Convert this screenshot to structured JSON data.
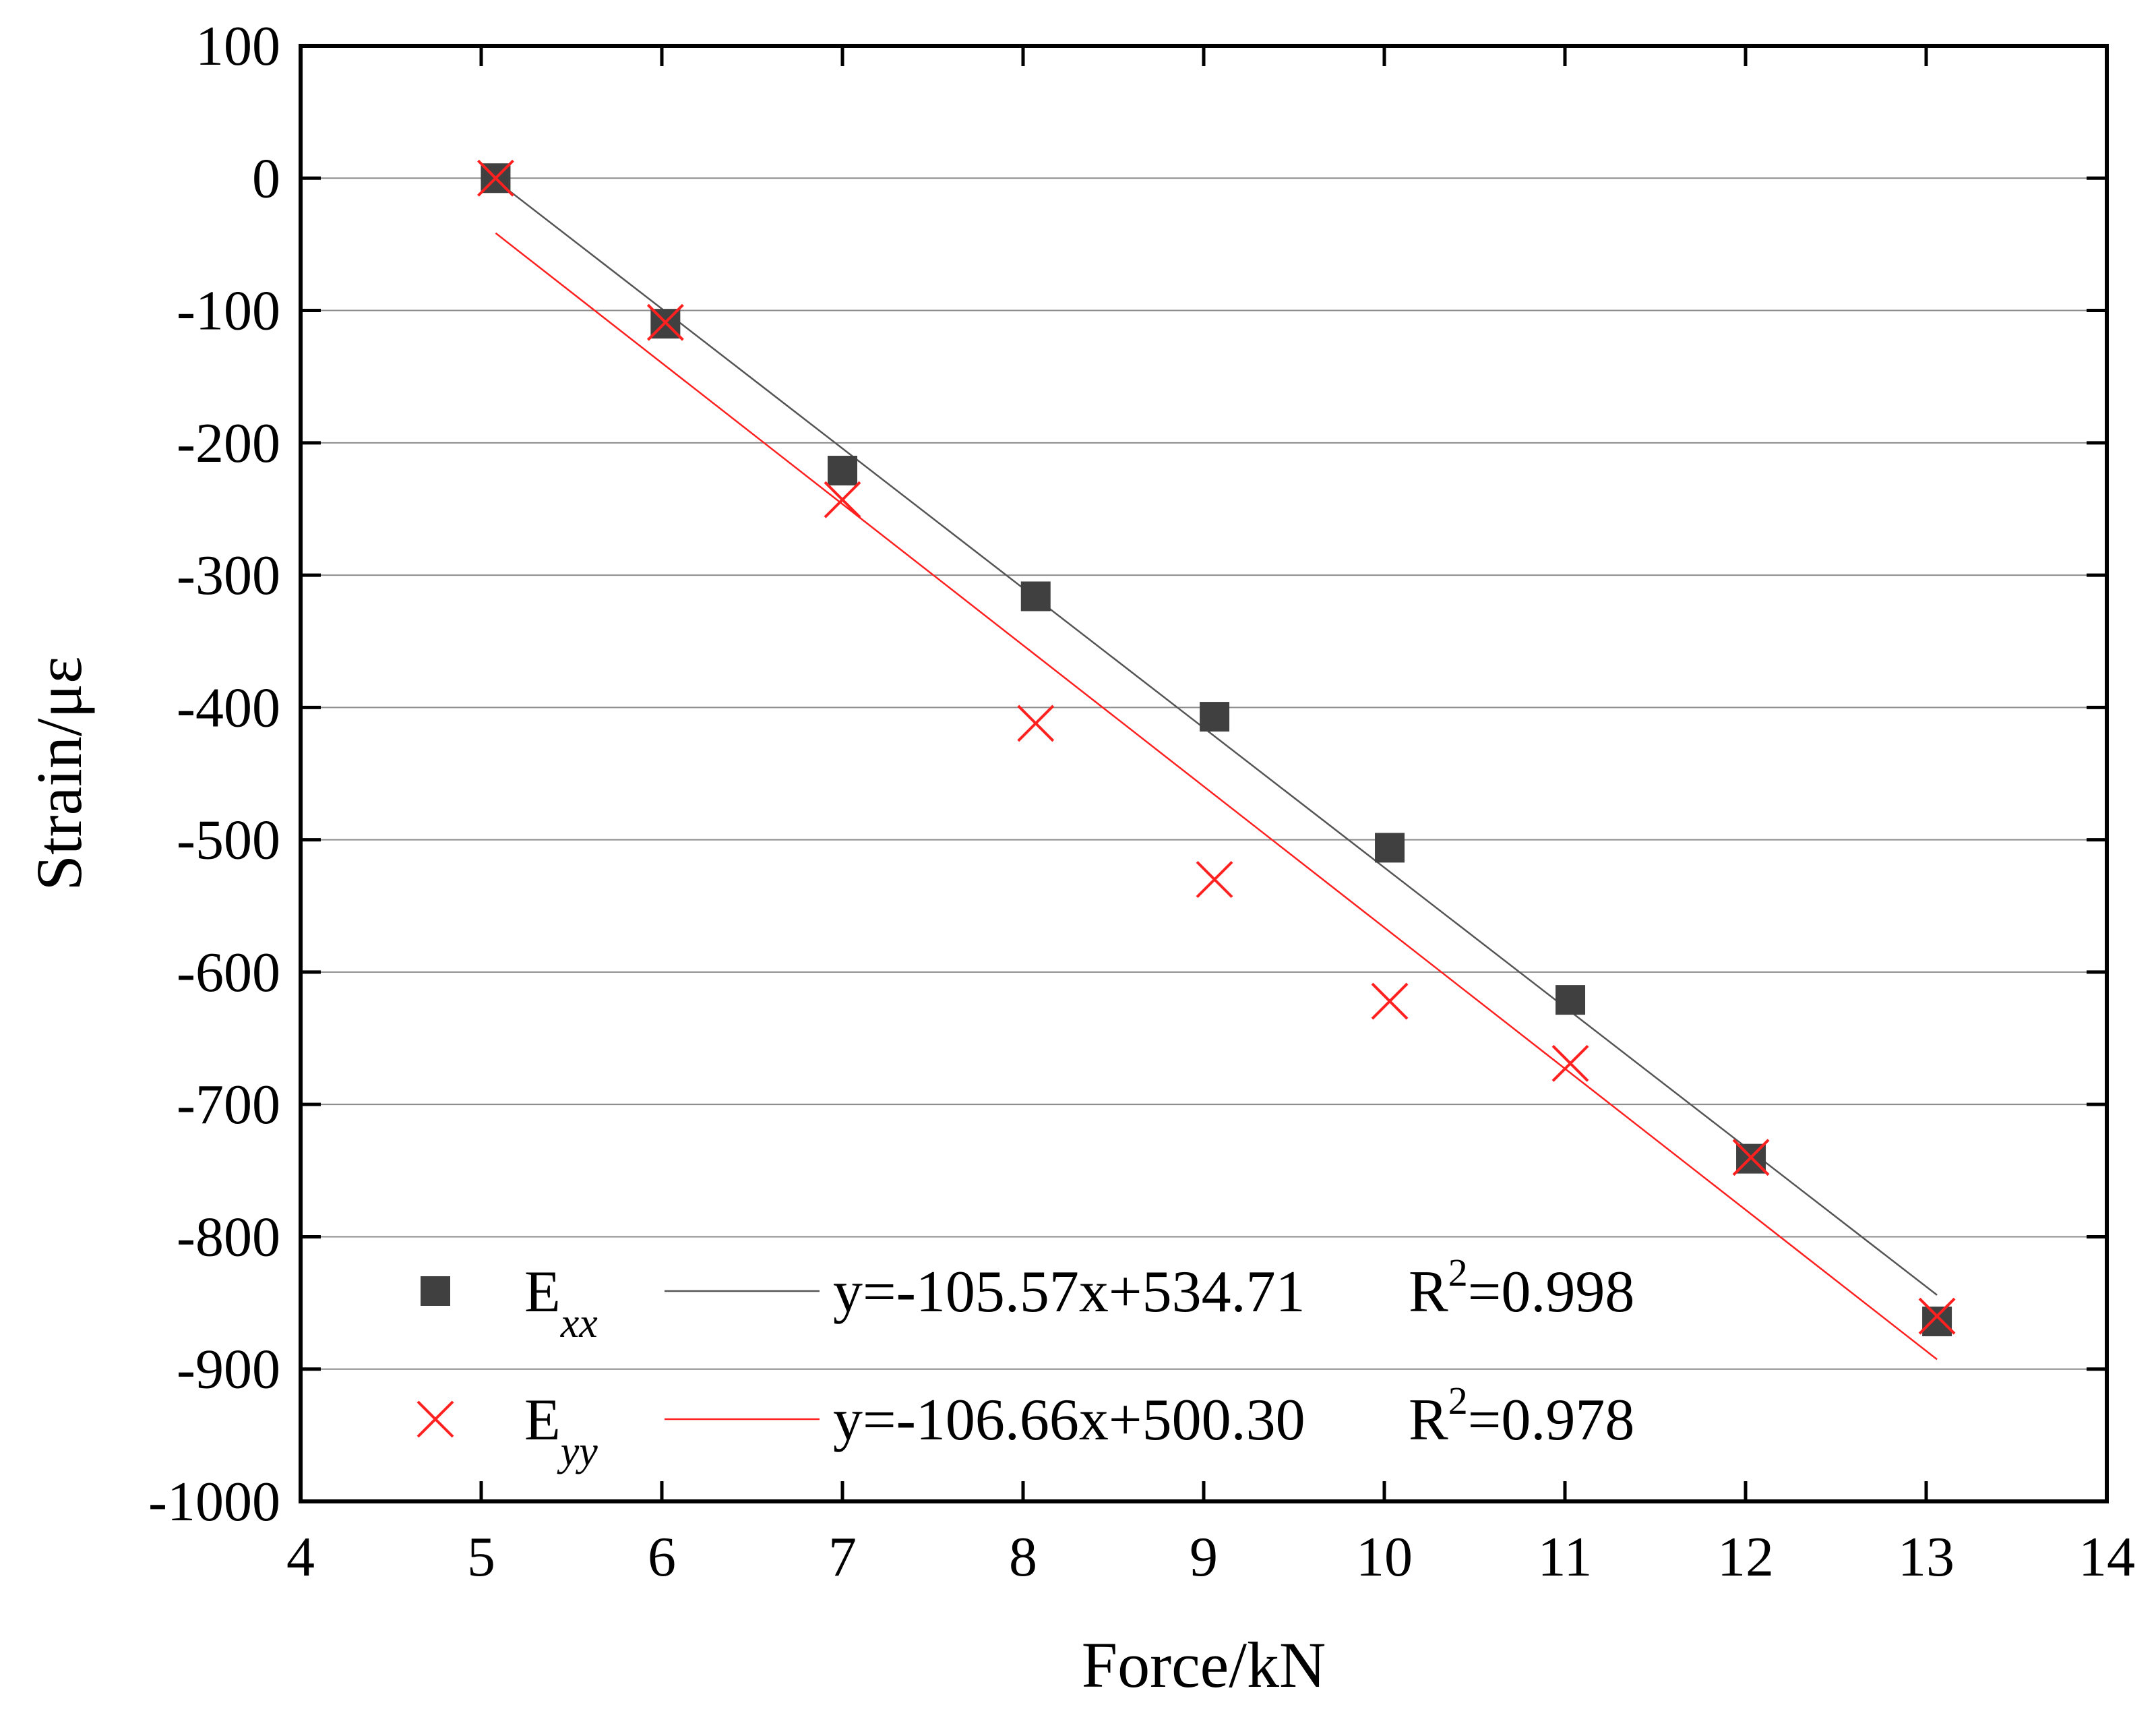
{
  "chart_data": {
    "type": "scatter",
    "xlabel": "Force/kN",
    "ylabel": "Strain/με",
    "xlim": [
      4,
      14
    ],
    "ylim": [
      -1000,
      100
    ],
    "x_ticks": [
      4,
      5,
      6,
      7,
      8,
      9,
      10,
      11,
      12,
      13,
      14
    ],
    "y_ticks": [
      100,
      0,
      -100,
      -200,
      -300,
      -400,
      -500,
      -600,
      -700,
      -800,
      -900,
      -1000
    ],
    "grid": "horizontal",
    "legend_position": "bottom-left",
    "series": [
      {
        "name": "E",
        "name_subscript": "xx",
        "marker": "square",
        "color": "#404040",
        "x": [
          5.08,
          6.02,
          7.0,
          8.07,
          9.06,
          10.03,
          11.03,
          12.03,
          13.06
        ],
        "y": [
          0,
          -110,
          -221,
          -316,
          -407,
          -506,
          -621,
          -741,
          -864
        ],
        "fit": {
          "slope": -105.57,
          "intercept": 534.71,
          "r2": 0.998,
          "x_range": [
            5.08,
            13.06
          ],
          "line_color": "#555555"
        },
        "equation": "y=-105.57x+534.71",
        "r2_label": "=0.998"
      },
      {
        "name": "E",
        "name_subscript": "yy",
        "marker": "x",
        "color": "#ff2020",
        "x": [
          5.08,
          6.02,
          7.0,
          8.07,
          9.06,
          10.03,
          11.03,
          12.03,
          13.06
        ],
        "y": [
          0,
          -109,
          -243,
          -412,
          -530,
          -622,
          -669,
          -740,
          -860
        ],
        "fit": {
          "slope": -106.66,
          "intercept": 500.3,
          "r2": 0.978,
          "x_range": [
            5.08,
            13.06
          ],
          "line_color": "#ff2020"
        },
        "equation": "y=-106.66x+500.30",
        "r2_label": "=0.978"
      }
    ],
    "r2_prefix": "R",
    "r2_superscript": "2"
  }
}
